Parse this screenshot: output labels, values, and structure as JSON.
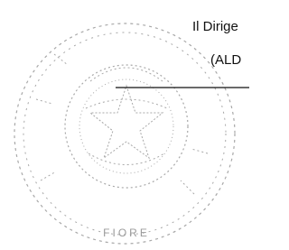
{
  "signature": {
    "title": "Il Dirige",
    "name": "(ALD"
  },
  "stamp": {
    "text": "FIORE"
  }
}
